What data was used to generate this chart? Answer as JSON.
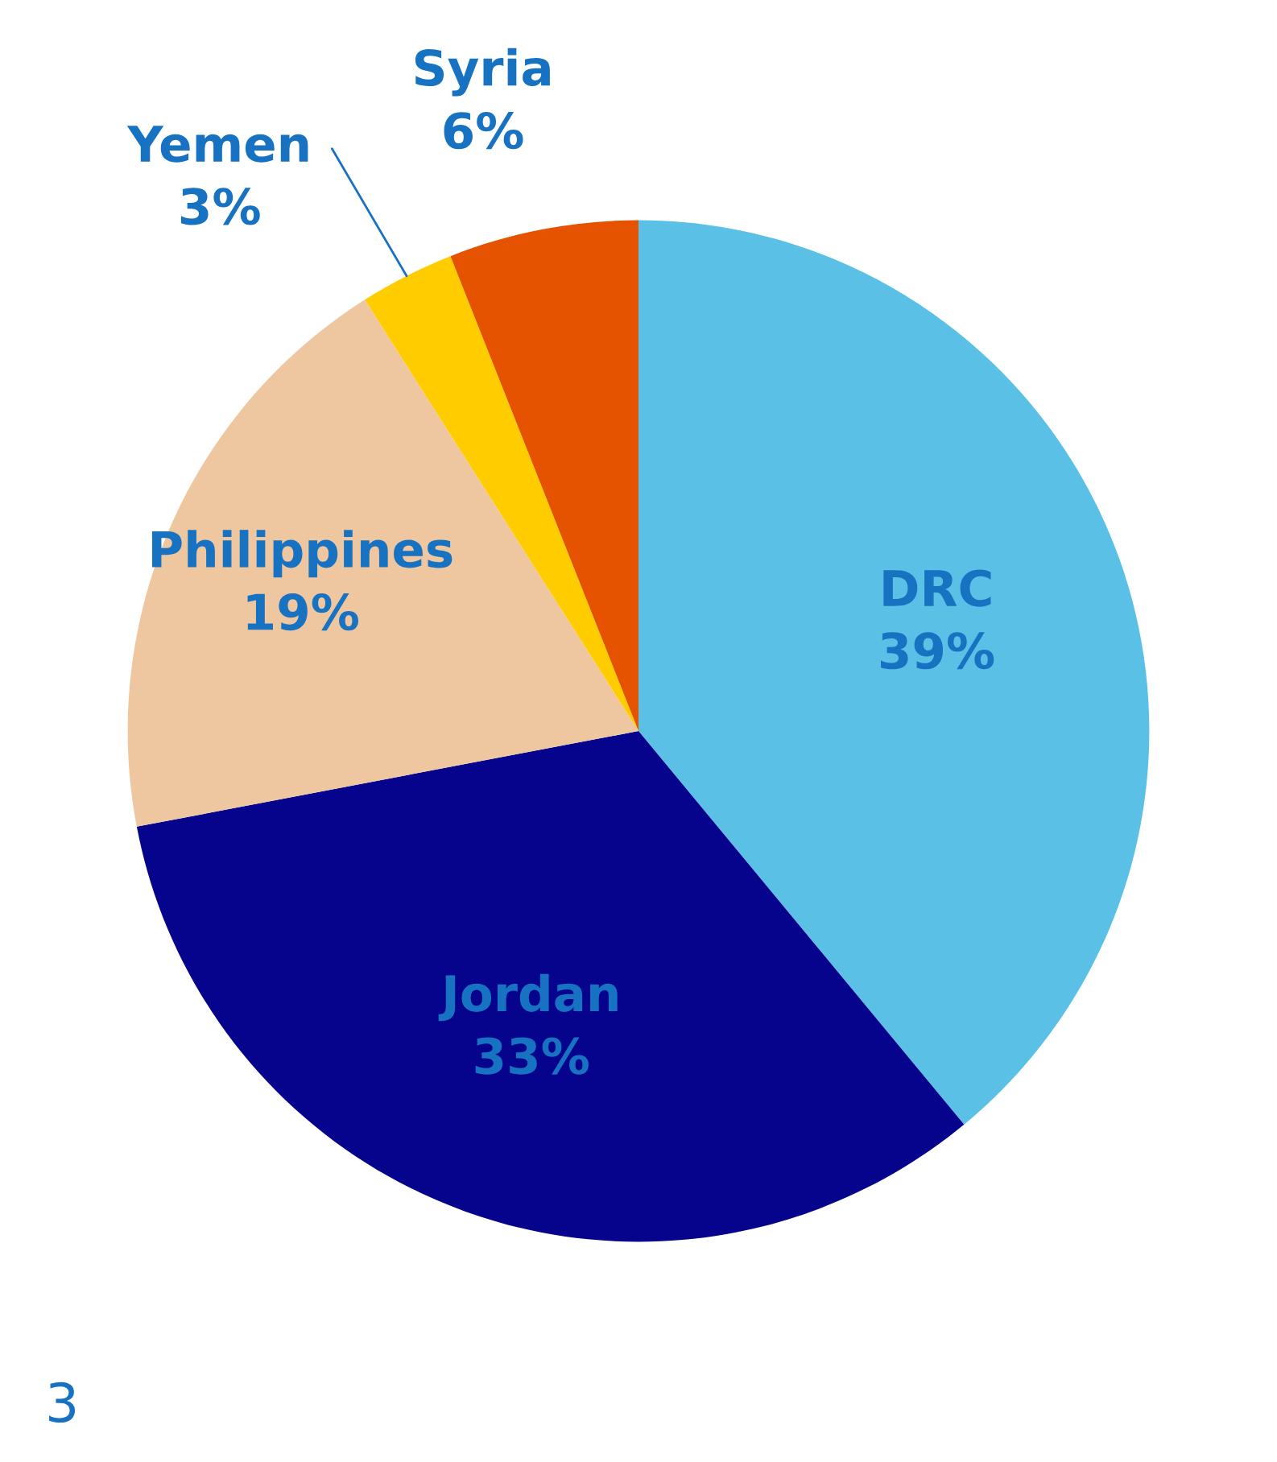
{
  "chart_data": {
    "type": "pie",
    "categories": [
      "DRC",
      "Jordan",
      "Philippines",
      "Yemen",
      "Syria"
    ],
    "values": [
      39,
      33,
      19,
      3,
      6
    ],
    "value_labels": [
      "39%",
      "33%",
      "19%",
      "3%",
      "6%"
    ],
    "colors": [
      "#5bc0e6",
      "#06038d",
      "#eec7a0",
      "#ffcc00",
      "#e55300"
    ],
    "annotations": [
      "3"
    ]
  }
}
